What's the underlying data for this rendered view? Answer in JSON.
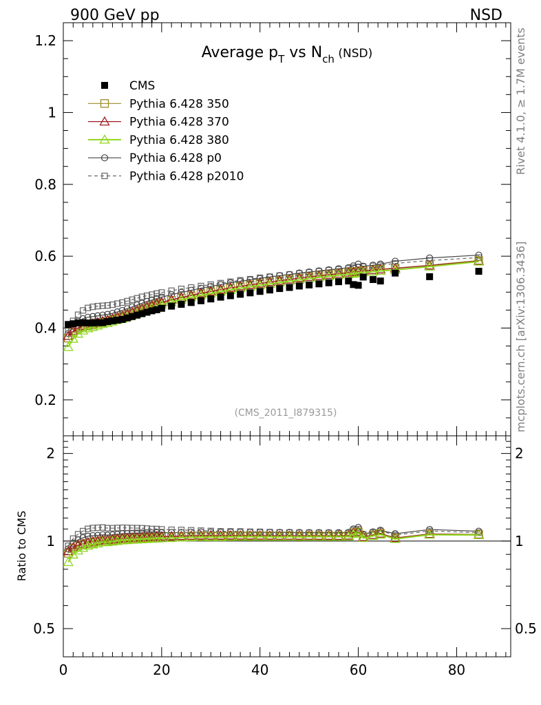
{
  "header": {
    "left": "900 GeV pp",
    "right": "NSD"
  },
  "side_text": {
    "rivet": "Rivet 4.1.0, ≥ 1.7M events",
    "mcplots": "mcplots.cern.ch [arXiv:1306.3436]"
  },
  "chart_data": {
    "type": "scatter",
    "title": {
      "main": "Average p",
      "pt_sub": "T",
      "mid": " vs N",
      "nch_sub": "ch",
      "suffix": " (NSD)"
    },
    "analysis_label": "(CMS_2011_I879315)",
    "ratio_ylabel": "Ratio to CMS",
    "xlabel": "",
    "xlim": [
      0,
      91
    ],
    "main_ylim": [
      0.1,
      1.25
    ],
    "ratio_ylim": [
      0.4,
      2.3
    ],
    "x_ticks": [
      "0",
      "20",
      "40",
      "60",
      "80"
    ],
    "main_y_ticks": [
      "0.2",
      "0.4",
      "0.6",
      "0.8",
      "1",
      "1.2"
    ],
    "ratio_y_ticks": [
      "0.5",
      "1",
      "2"
    ],
    "legend": [
      {
        "name": "CMS",
        "color": "#000000",
        "marker": "filled-square",
        "line": "none"
      },
      {
        "name": "Pythia 6.428 350",
        "color": "#9a8a22",
        "marker": "open-square",
        "line": "solid"
      },
      {
        "name": "Pythia 6.428 370",
        "color": "#9b1a22",
        "marker": "open-triangle",
        "line": "solid"
      },
      {
        "name": "Pythia 6.428 380",
        "color": "#8ed61e",
        "marker": "open-triangle",
        "line": "solid"
      },
      {
        "name": "Pythia 6.428 p0",
        "color": "#444444",
        "marker": "open-circle",
        "line": "solid"
      },
      {
        "name": "Pythia 6.428 p2010",
        "color": "#666666",
        "marker": "open-square-small",
        "line": "dashed"
      }
    ],
    "x": [
      1,
      2,
      3,
      4,
      5,
      6,
      7,
      8,
      9,
      10,
      11,
      12,
      13,
      14,
      15,
      16,
      17,
      18,
      19,
      20,
      22,
      24,
      26,
      28,
      30,
      32,
      34,
      36,
      38,
      40,
      42,
      44,
      46,
      48,
      50,
      52,
      54,
      56,
      58,
      59,
      60,
      61,
      63,
      64.5,
      67.5,
      74.5,
      84.5
    ],
    "series": [
      {
        "name": "CMS",
        "values": [
          0.41,
          0.412,
          0.414,
          0.415,
          0.414,
          0.414,
          0.415,
          0.415,
          0.418,
          0.42,
          0.422,
          0.424,
          0.428,
          0.432,
          0.436,
          0.44,
          0.444,
          0.448,
          0.451,
          0.455,
          0.461,
          0.466,
          0.471,
          0.476,
          0.481,
          0.486,
          0.49,
          0.494,
          0.498,
          0.502,
          0.506,
          0.51,
          0.513,
          0.517,
          0.52,
          0.523,
          0.526,
          0.529,
          0.531,
          0.521,
          0.519,
          0.542,
          0.535,
          0.531,
          0.553,
          0.543,
          0.558
        ]
      },
      {
        "name": "Pythia 6.428 350",
        "values": [
          0.372,
          0.388,
          0.398,
          0.404,
          0.407,
          0.41,
          0.413,
          0.416,
          0.419,
          0.423,
          0.427,
          0.431,
          0.436,
          0.441,
          0.446,
          0.451,
          0.456,
          0.461,
          0.466,
          0.47,
          0.477,
          0.484,
          0.49,
          0.496,
          0.501,
          0.506,
          0.511,
          0.516,
          0.52,
          0.524,
          0.528,
          0.532,
          0.536,
          0.539,
          0.543,
          0.546,
          0.549,
          0.552,
          0.555,
          0.557,
          0.558,
          0.56,
          0.562,
          0.564,
          0.567,
          0.575,
          0.588
        ]
      },
      {
        "name": "Pythia 6.428 370",
        "values": [
          0.378,
          0.392,
          0.401,
          0.406,
          0.41,
          0.413,
          0.416,
          0.419,
          0.422,
          0.426,
          0.43,
          0.434,
          0.439,
          0.444,
          0.449,
          0.454,
          0.459,
          0.463,
          0.468,
          0.472,
          0.479,
          0.485,
          0.491,
          0.497,
          0.502,
          0.507,
          0.512,
          0.516,
          0.52,
          0.524,
          0.528,
          0.532,
          0.535,
          0.539,
          0.542,
          0.545,
          0.548,
          0.551,
          0.554,
          0.556,
          0.557,
          0.559,
          0.561,
          0.563,
          0.566,
          0.574,
          0.587
        ]
      },
      {
        "name": "Pythia 6.428 380",
        "values": [
          0.347,
          0.37,
          0.384,
          0.393,
          0.399,
          0.403,
          0.407,
          0.411,
          0.414,
          0.418,
          0.422,
          0.426,
          0.431,
          0.436,
          0.441,
          0.446,
          0.451,
          0.456,
          0.46,
          0.465,
          0.472,
          0.479,
          0.485,
          0.491,
          0.496,
          0.501,
          0.506,
          0.511,
          0.515,
          0.519,
          0.523,
          0.527,
          0.531,
          0.534,
          0.538,
          0.541,
          0.544,
          0.547,
          0.55,
          0.551,
          0.553,
          0.555,
          0.557,
          0.559,
          0.562,
          0.571,
          0.585
        ]
      },
      {
        "name": "Pythia 6.428 p0",
        "values": [
          0.385,
          0.405,
          0.418,
          0.426,
          0.43,
          0.432,
          0.434,
          0.436,
          0.438,
          0.441,
          0.445,
          0.449,
          0.454,
          0.459,
          0.464,
          0.469,
          0.474,
          0.478,
          0.482,
          0.486,
          0.493,
          0.499,
          0.505,
          0.511,
          0.516,
          0.521,
          0.526,
          0.53,
          0.534,
          0.538,
          0.542,
          0.546,
          0.549,
          0.553,
          0.556,
          0.559,
          0.562,
          0.565,
          0.568,
          0.573,
          0.578,
          0.572,
          0.575,
          0.578,
          0.586,
          0.595,
          0.603
        ]
      },
      {
        "name": "Pythia 6.428 p2010",
        "values": [
          0.395,
          0.42,
          0.437,
          0.449,
          0.456,
          0.459,
          0.461,
          0.462,
          0.463,
          0.465,
          0.468,
          0.471,
          0.475,
          0.479,
          0.483,
          0.487,
          0.49,
          0.493,
          0.496,
          0.499,
          0.504,
          0.509,
          0.513,
          0.517,
          0.521,
          0.525,
          0.529,
          0.533,
          0.536,
          0.54,
          0.543,
          0.546,
          0.549,
          0.552,
          0.555,
          0.558,
          0.561,
          0.563,
          0.566,
          0.568,
          0.57,
          0.571,
          0.573,
          0.575,
          0.58,
          0.588,
          0.596
        ]
      }
    ]
  }
}
